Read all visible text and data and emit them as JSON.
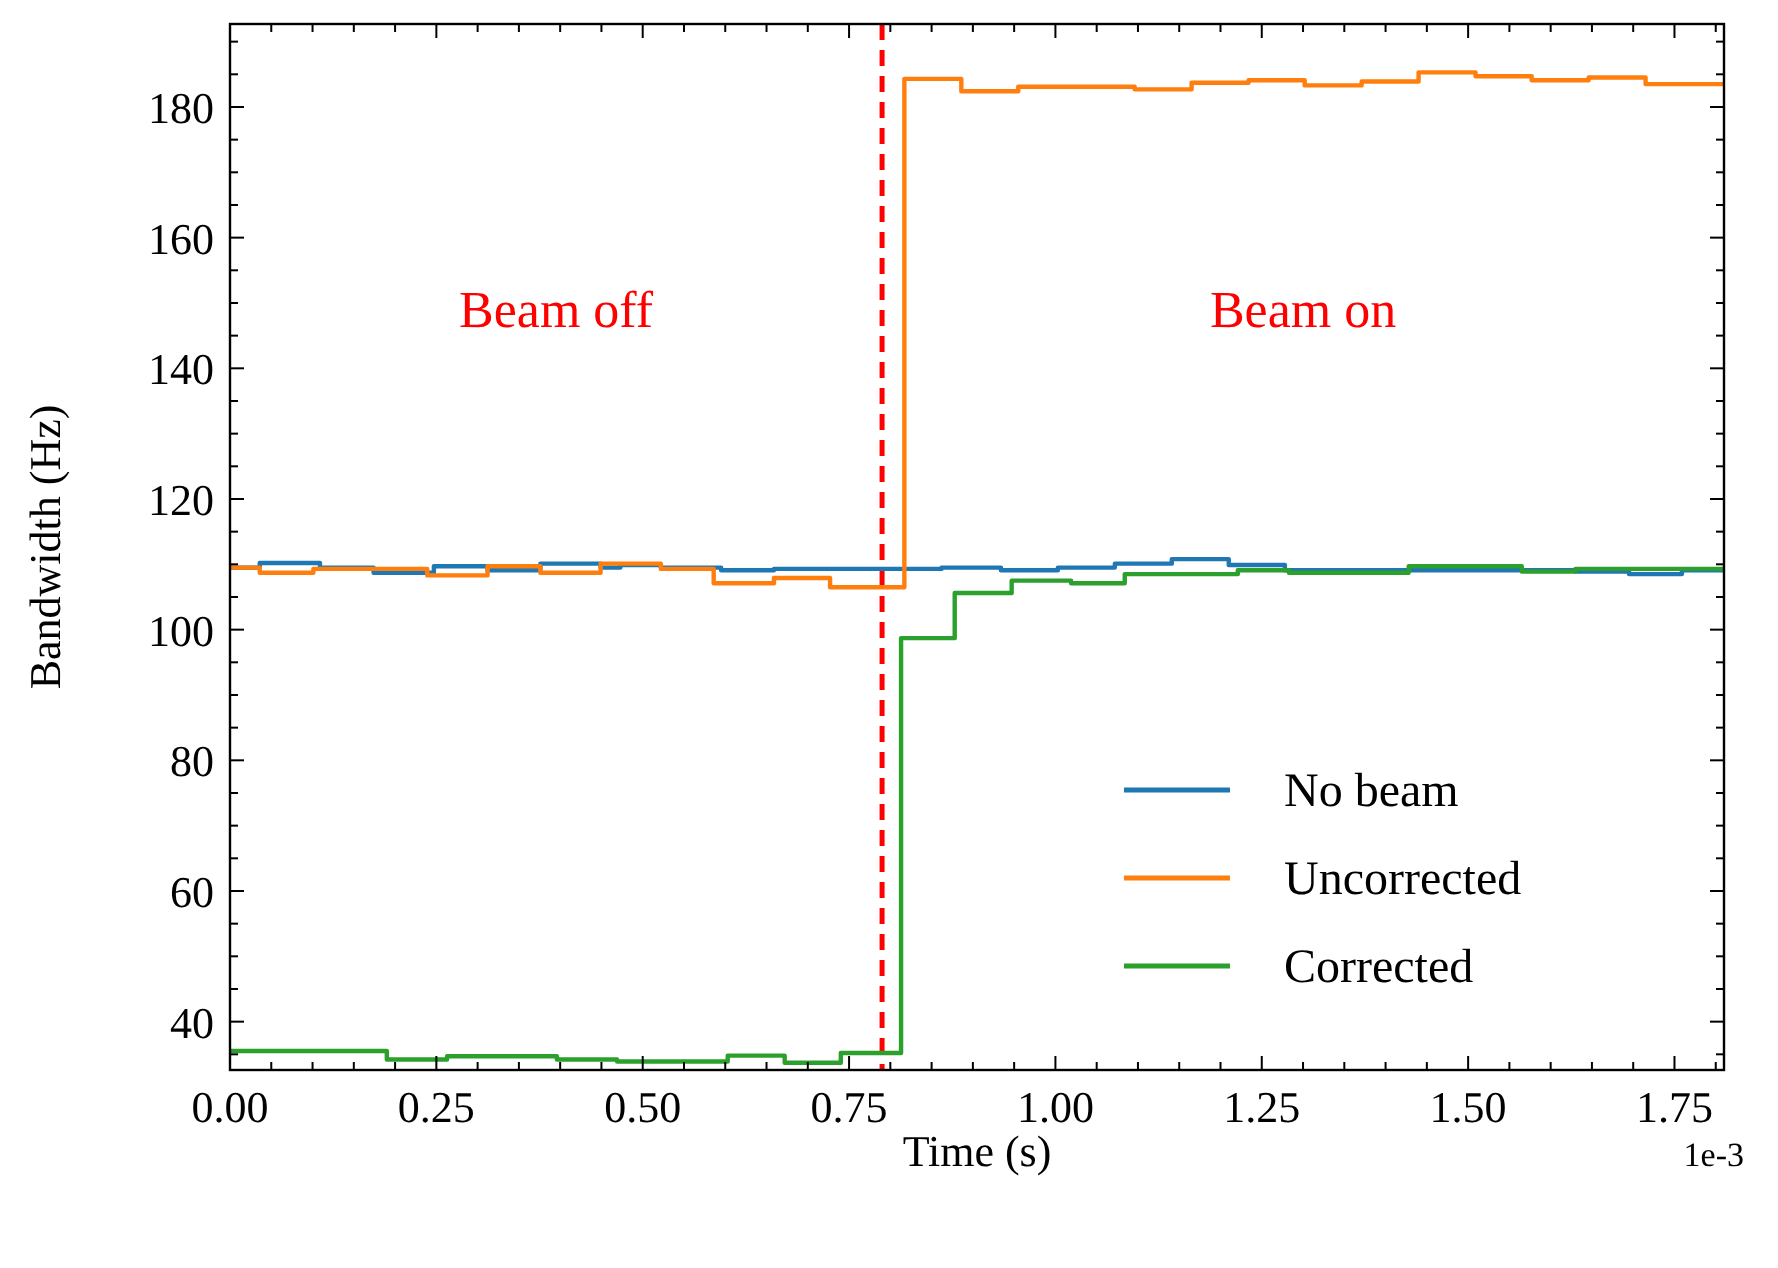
{
  "chart_data": {
    "type": "step",
    "xlabel": "Time (s)",
    "ylabel": "Bandwidth (Hz)",
    "xlim": [
      0,
      1.81
    ],
    "ylim": [
      32.6,
      192.7
    ],
    "xticks": [
      {
        "value": 0,
        "label": "0.00"
      },
      {
        "value": 0.05,
        "label": null
      },
      {
        "value": 0.1,
        "label": null
      },
      {
        "value": 0.15,
        "label": null
      },
      {
        "value": 0.2,
        "label": null
      },
      {
        "value": 0.25,
        "label": "0.25"
      },
      {
        "value": 0.3,
        "label": null
      },
      {
        "value": 0.35,
        "label": null
      },
      {
        "value": 0.4,
        "label": null
      },
      {
        "value": 0.45,
        "label": null
      },
      {
        "value": 0.5,
        "label": "0.50"
      },
      {
        "value": 0.55,
        "label": null
      },
      {
        "value": 0.6,
        "label": null
      },
      {
        "value": 0.65,
        "label": null
      },
      {
        "value": 0.7,
        "label": null
      },
      {
        "value": 0.75,
        "label": "0.75"
      },
      {
        "value": 0.8,
        "label": null
      },
      {
        "value": 0.85,
        "label": null
      },
      {
        "value": 0.9,
        "label": null
      },
      {
        "value": 0.95,
        "label": null
      },
      {
        "value": 1,
        "label": "1.00"
      },
      {
        "value": 1.05,
        "label": null
      },
      {
        "value": 1.1,
        "label": null
      },
      {
        "value": 1.15,
        "label": null
      },
      {
        "value": 1.2,
        "label": null
      },
      {
        "value": 1.25,
        "label": "1.25"
      },
      {
        "value": 1.3,
        "label": null
      },
      {
        "value": 1.35,
        "label": null
      },
      {
        "value": 1.4,
        "label": null
      },
      {
        "value": 1.45,
        "label": null
      },
      {
        "value": 1.5,
        "label": "1.50"
      },
      {
        "value": 1.55,
        "label": null
      },
      {
        "value": 1.6,
        "label": null
      },
      {
        "value": 1.65,
        "label": null
      },
      {
        "value": 1.7,
        "label": null
      },
      {
        "value": 1.75,
        "label": "1.75"
      },
      {
        "value": 1.8,
        "label": null
      }
    ],
    "yticks": [
      {
        "value": 35,
        "label": null
      },
      40,
      {
        "value": 45,
        "label": null
      },
      {
        "value": 50,
        "label": null
      },
      {
        "value": 55,
        "label": null
      },
      60,
      {
        "value": 65,
        "label": null
      },
      {
        "value": 70,
        "label": null
      },
      {
        "value": 75,
        "label": null
      },
      80,
      {
        "value": 85,
        "label": null
      },
      {
        "value": 90,
        "label": null
      },
      {
        "value": 95,
        "label": null
      },
      100,
      {
        "value": 105,
        "label": null
      },
      {
        "value": 110,
        "label": null
      },
      {
        "value": 115,
        "label": null
      },
      120,
      {
        "value": 125,
        "label": null
      },
      {
        "value": 130,
        "label": null
      },
      {
        "value": 135,
        "label": null
      },
      140,
      {
        "value": 145,
        "label": null
      },
      {
        "value": 150,
        "label": null
      },
      {
        "value": 155,
        "label": null
      },
      160,
      {
        "value": 165,
        "label": null
      },
      {
        "value": 170,
        "label": null
      },
      {
        "value": 175,
        "label": null
      },
      180,
      {
        "value": 185,
        "label": null
      },
      {
        "value": 190,
        "label": null
      }
    ],
    "series": [
      {
        "name": "No beam",
        "color": "#1f77b4",
        "x": [
          0,
          0.036,
          0.109,
          0.174,
          0.247,
          0.312,
          0.376,
          0.449,
          0.473,
          0.522,
          0.595,
          0.659,
          0.862,
          0.934,
          1.003,
          1.072,
          1.141,
          1.21,
          1.278,
          1.63,
          1.695,
          1.759,
          1.81
        ],
        "values": [
          109.5,
          110.2,
          109.5,
          108.7,
          109.7,
          109.1,
          110.1,
          109.5,
          109.9,
          109.5,
          109.1,
          109.3,
          109.5,
          109.1,
          109.5,
          110.1,
          110.8,
          109.9,
          109.1,
          108.9,
          108.5,
          109.1,
          109.1
        ]
      },
      {
        "name": "Uncorrected",
        "color": "#ff7f0e",
        "x": [
          0,
          0.036,
          0.101,
          0.239,
          0.312,
          0.376,
          0.449,
          0.522,
          0.586,
          0.659,
          0.727,
          0.817,
          0.886,
          0.955,
          1.096,
          1.165,
          1.234,
          1.302,
          1.371,
          1.44,
          1.509,
          1.577,
          1.646,
          1.715,
          1.81
        ],
        "values": [
          109.5,
          108.7,
          109.3,
          108.3,
          109.7,
          108.7,
          110.1,
          109.3,
          107.1,
          107.9,
          106.5,
          184.3,
          182.4,
          183.1,
          182.7,
          183.7,
          184.1,
          183.3,
          183.9,
          185.3,
          184.7,
          184.1,
          184.5,
          183.5,
          183.5
        ]
      },
      {
        "name": "Corrected",
        "color": "#2ca02c",
        "x": [
          0,
          0.19,
          0.263,
          0.396,
          0.469,
          0.603,
          0.672,
          0.74,
          0.813,
          0.878,
          0.947,
          1.019,
          1.084,
          1.221,
          1.283,
          1.428,
          1.565,
          1.63,
          1.81
        ],
        "values": [
          35.5,
          34.2,
          34.7,
          34.2,
          33.9,
          34.8,
          33.7,
          35.2,
          98.7,
          105.6,
          107.5,
          107.1,
          108.5,
          109.1,
          108.7,
          109.7,
          108.9,
          109.3,
          109.3
        ]
      }
    ],
    "ref_lines": [
      {
        "axis": "x",
        "value": 0.79,
        "color": "#ff0000",
        "line_style": "dashed"
      }
    ],
    "annotations": [
      "Beam off",
      "Beam on",
      "1e-3"
    ],
    "legend": "bottom right",
    "grid": false,
    "line_style": "solid"
  }
}
